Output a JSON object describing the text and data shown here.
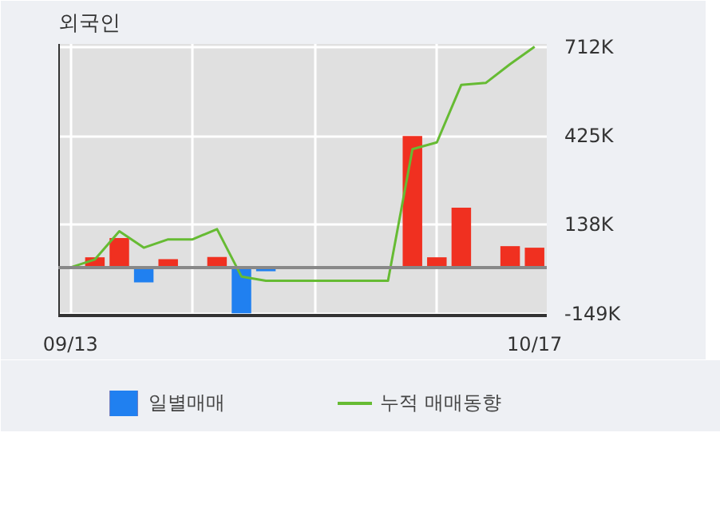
{
  "chart_data": {
    "type": "bar",
    "title": "외국인",
    "categories": [
      "09/13",
      null,
      null,
      null,
      null,
      null,
      null,
      null,
      null,
      null,
      null,
      null,
      null,
      null,
      null,
      null,
      null,
      null,
      null,
      "10/17"
    ],
    "series": [
      {
        "name": "일별매매",
        "type": "bar",
        "values": [
          0,
          33000,
          95000,
          -48000,
          27000,
          0,
          34000,
          -148000,
          -12000,
          0,
          0,
          0,
          0,
          0,
          425000,
          33000,
          193000,
          0,
          69000,
          64000
        ],
        "colors": [
          "#f03020",
          "#f03020",
          "#f03020",
          "#2080f0",
          "#f03020",
          "#f03020",
          "#f03020",
          "#2080f0",
          "#2080f0",
          "#f03020",
          "#f03020",
          "#f03020",
          "#f03020",
          "#f03020",
          "#f03020",
          "#f03020",
          "#f03020",
          "#f03020",
          "#f03020",
          "#f03020"
        ]
      },
      {
        "name": "누적 매매동향",
        "type": "line",
        "color": "#66bb33",
        "values": [
          0,
          26000,
          117000,
          64000,
          91000,
          91000,
          124000,
          -29000,
          -43000,
          -43000,
          -43000,
          -43000,
          -43000,
          -43000,
          382000,
          404000,
          590000,
          596000,
          657000,
          713000
        ]
      }
    ],
    "ylim": [
      -155000,
      722000
    ],
    "yticks": [
      {
        "value": -149000,
        "label": "-149K"
      },
      {
        "value": 138000,
        "label": "138K"
      },
      {
        "value": 425000,
        "label": "425K"
      },
      {
        "value": 712000,
        "label": "712K"
      }
    ],
    "ref_lines": [
      {
        "axis": "y",
        "value": 0,
        "color": "#888888"
      }
    ],
    "grid": true,
    "legend": "bottom"
  }
}
